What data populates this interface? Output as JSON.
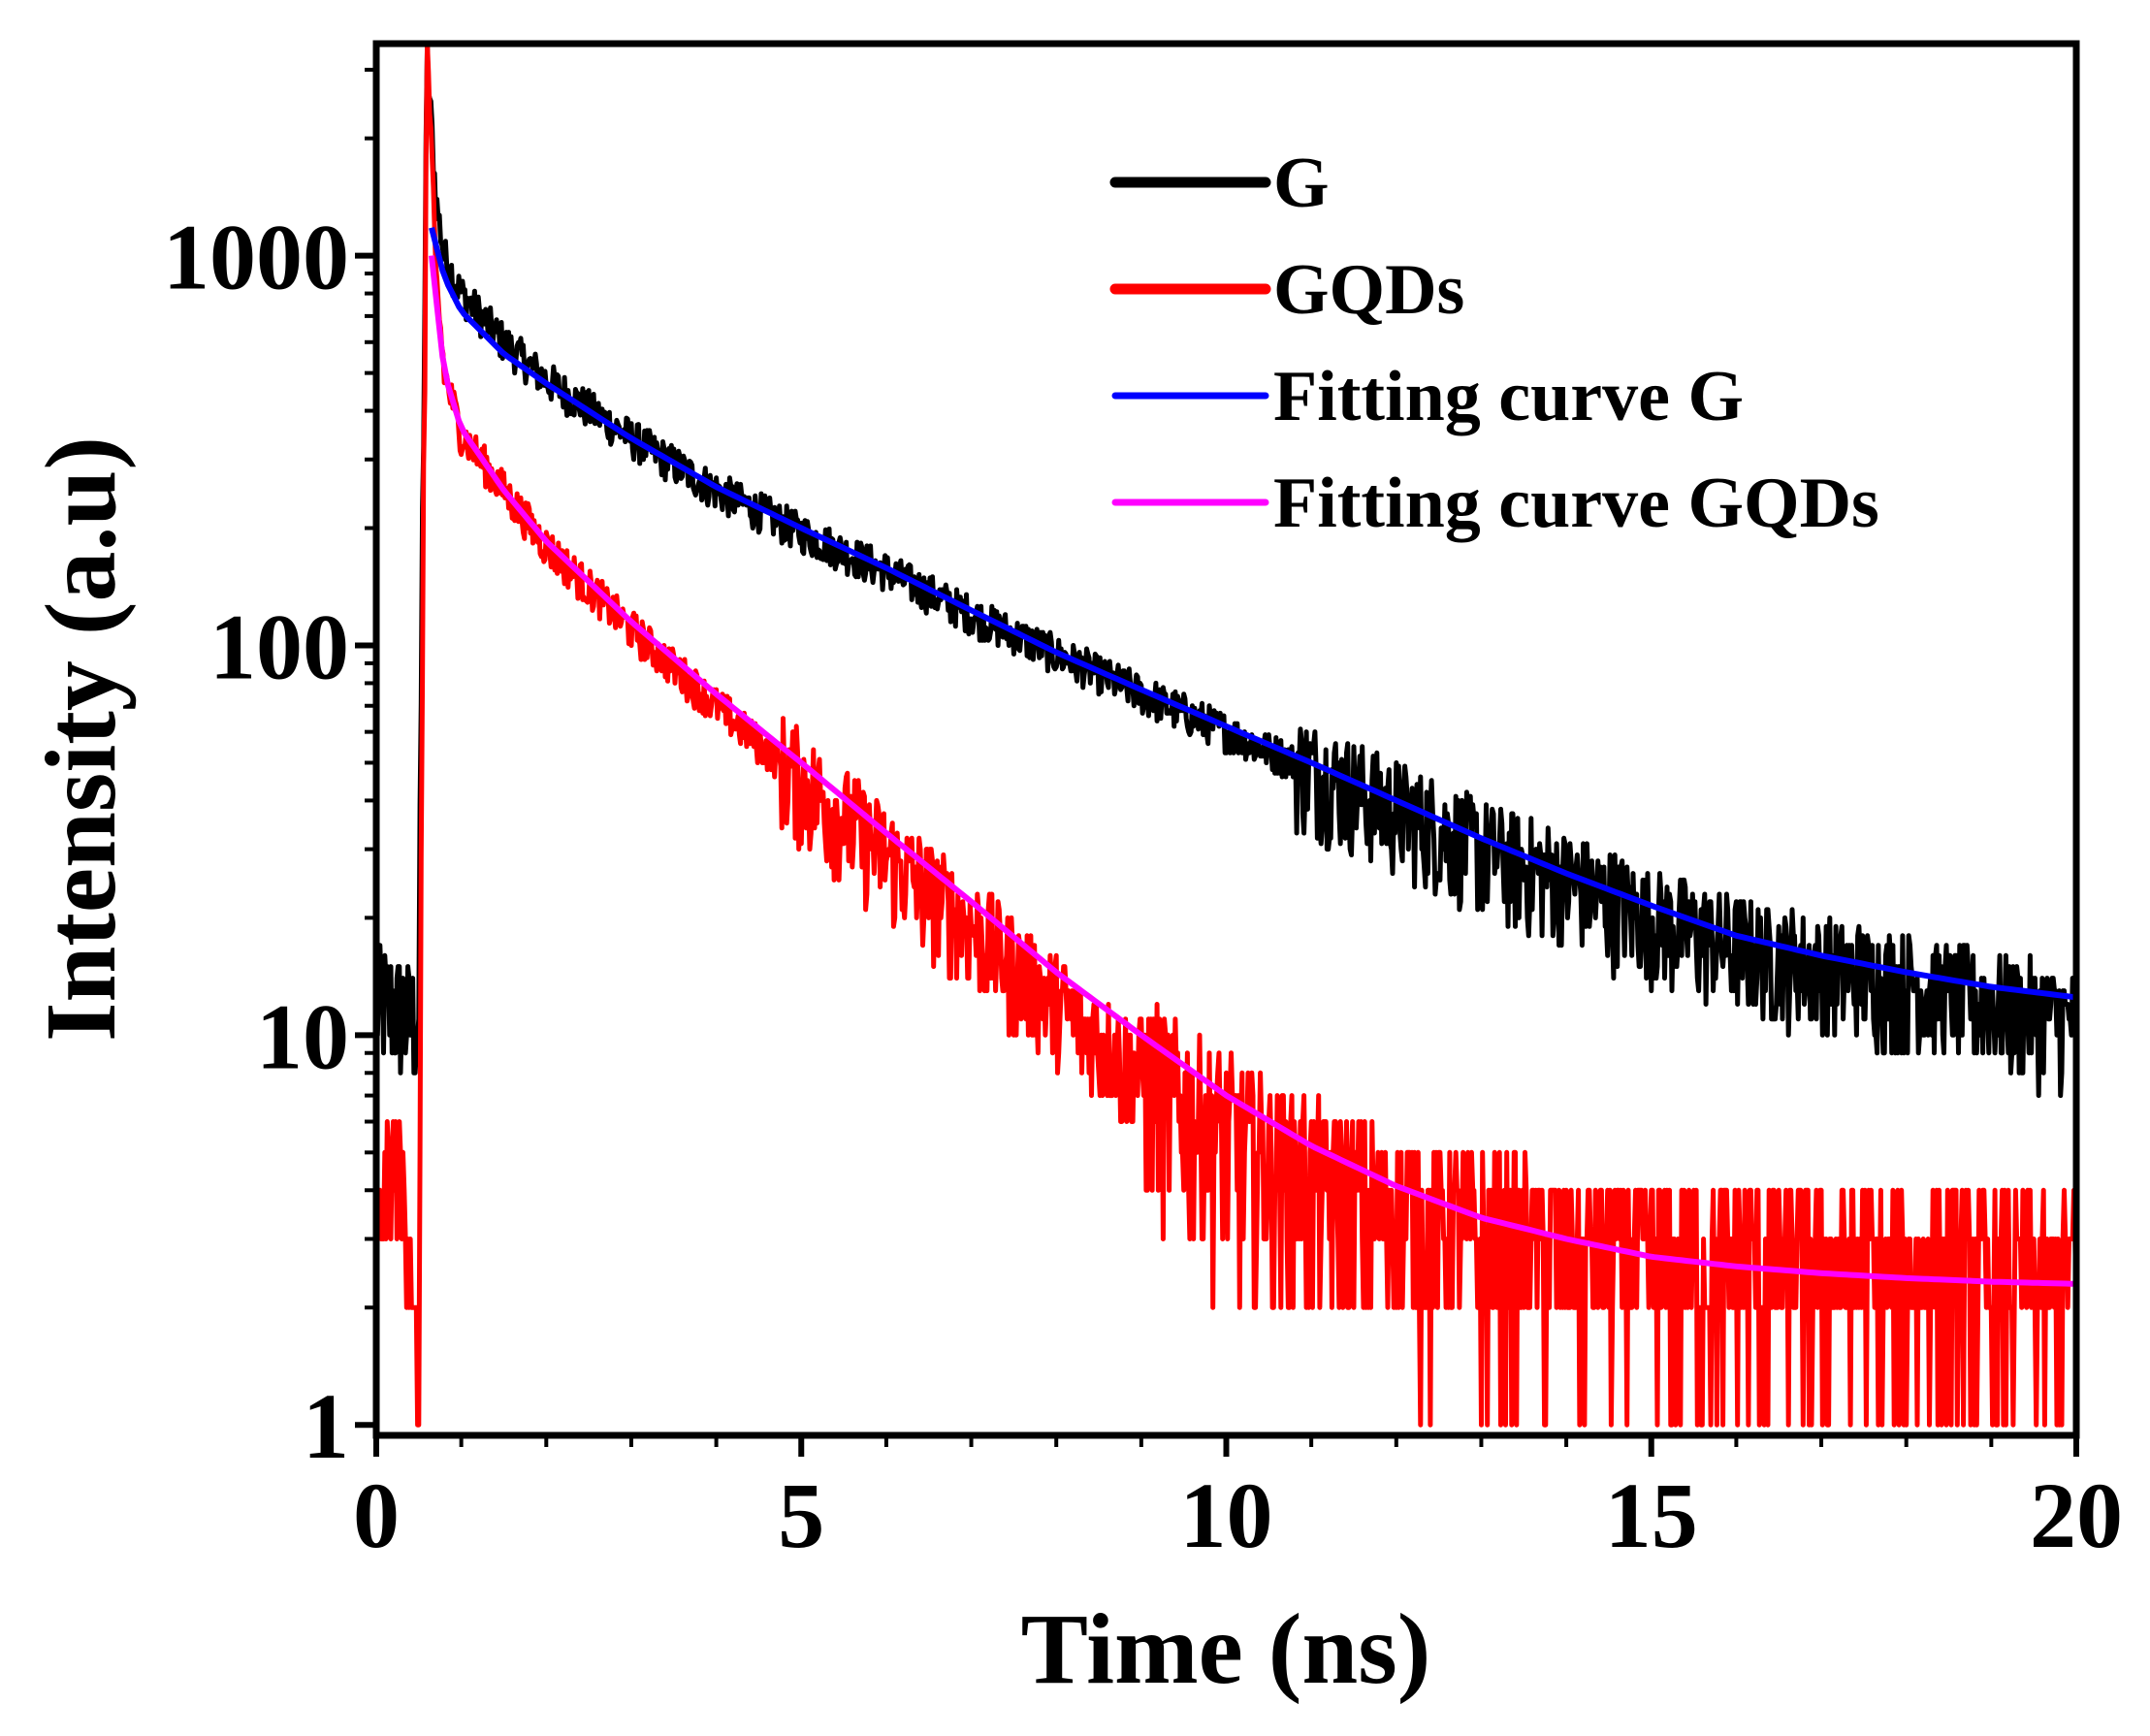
{
  "chart_data": {
    "type": "line",
    "title": "",
    "xlabel": "Time (ns)",
    "ylabel": "Intensity (a.u)",
    "xlim": [
      0,
      20
    ],
    "ylim": [
      0.94,
      3500
    ],
    "yscale": "log",
    "xticks": [
      0,
      5,
      10,
      15,
      20
    ],
    "xtick_labels": [
      "0",
      "5",
      "10",
      "15",
      "20"
    ],
    "yticks": [
      1,
      10,
      100,
      1000
    ],
    "ytick_labels": [
      "1",
      "10",
      "100",
      "1000"
    ],
    "grid": false,
    "legend_position": "top-right",
    "series": [
      {
        "name": "G",
        "color": "#000000",
        "style": "noisy-data",
        "x": [
          0,
          0.2,
          0.4,
          0.5,
          0.55,
          0.6,
          0.65,
          0.7,
          0.8,
          1.0,
          1.5,
          2,
          3,
          4,
          5,
          6,
          7,
          8,
          9,
          10,
          11,
          12,
          13,
          14,
          15,
          16,
          17,
          18,
          19,
          20
        ],
        "y": [
          12,
          12,
          11,
          11,
          300,
          3000,
          2200,
          1400,
          1000,
          800,
          600,
          480,
          340,
          250,
          195,
          155,
          120,
          95,
          75,
          60,
          48,
          38,
          30,
          25,
          20,
          17,
          15,
          13.5,
          12,
          11
        ]
      },
      {
        "name": "GQDs",
        "color": "#ff0000",
        "style": "noisy-data",
        "x": [
          0,
          0.2,
          0.4,
          0.5,
          0.55,
          0.6,
          0.65,
          0.7,
          0.8,
          1.0,
          1.5,
          2,
          3,
          4,
          5,
          6,
          7,
          8,
          9,
          10,
          11,
          12,
          13,
          14,
          15,
          16,
          17,
          18,
          19,
          20
        ],
        "y": [
          3,
          5,
          3,
          1,
          200,
          3500,
          1800,
          900,
          500,
          350,
          250,
          180,
          110,
          70,
          45,
          29,
          19,
          12,
          8,
          5.5,
          4.3,
          3.5,
          3,
          2.8,
          2.6,
          2.6,
          2.5,
          2.5,
          2.4,
          2.4
        ]
      },
      {
        "name": "Fitting curve G",
        "color": "#0000ff",
        "style": "fit",
        "x": [
          0.65,
          0.8,
          1.0,
          1.5,
          2,
          3,
          4,
          5,
          6,
          7,
          8,
          9,
          10,
          11,
          12,
          13,
          14,
          15,
          16,
          17,
          18,
          19,
          20
        ],
        "y": [
          1180,
          880,
          720,
          560,
          470,
          340,
          255,
          200,
          158,
          123,
          96,
          77,
          62,
          50,
          40,
          32,
          26,
          21.5,
          18,
          16,
          14.5,
          13.3,
          12.5
        ]
      },
      {
        "name": "Fitting curve GQDs",
        "color": "#ff00ff",
        "style": "fit",
        "x": [
          0.65,
          0.8,
          1.0,
          1.5,
          2,
          3,
          4,
          5,
          6,
          7,
          8,
          9,
          10,
          11,
          12,
          13,
          14,
          15,
          16,
          17,
          18,
          19,
          20
        ],
        "y": [
          1000,
          500,
          360,
          250,
          185,
          115,
          75,
          50,
          33,
          22,
          14.5,
          10,
          7,
          5.2,
          4.1,
          3.4,
          3,
          2.7,
          2.55,
          2.45,
          2.38,
          2.33,
          2.3
        ]
      }
    ]
  }
}
